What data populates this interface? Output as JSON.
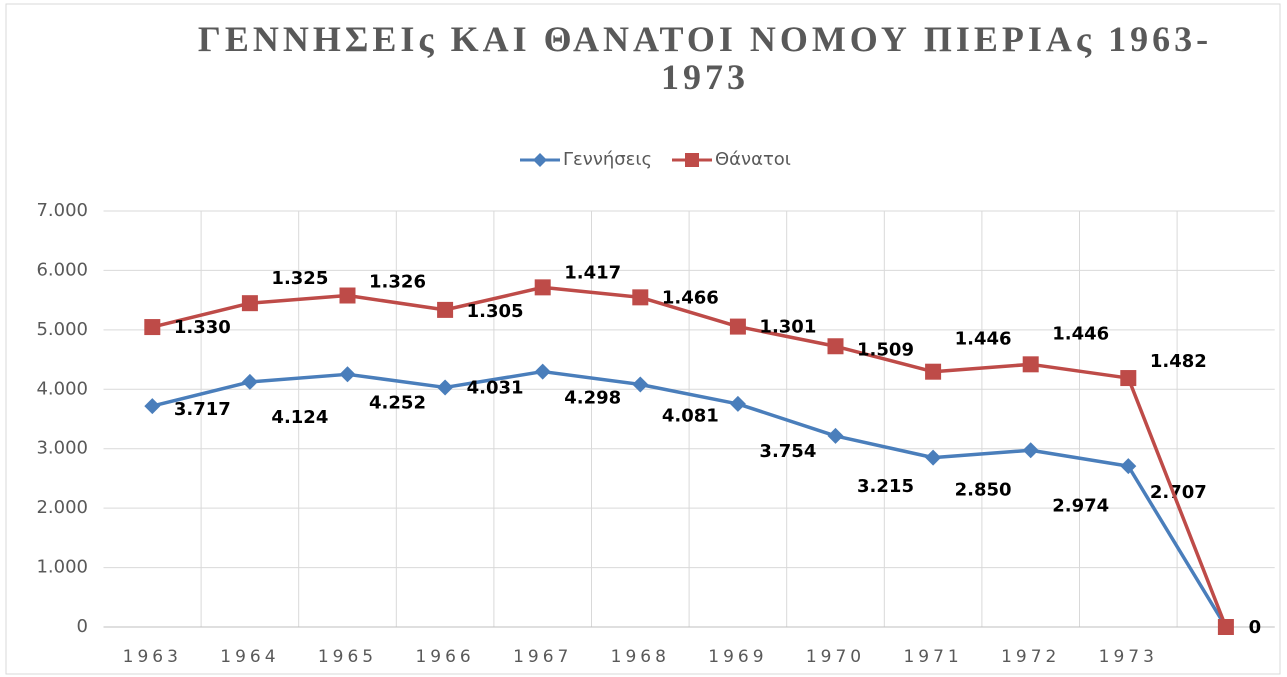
{
  "chart_data": {
    "type": "line",
    "stacked": true,
    "title": "ΓΕΝΝΗΣΕΙς ΚΑΙ ΘΑΝΑΤΟΙ ΝΟΜΟΥ ΠΙΕΡΙΑς 1963-1973",
    "categories": [
      "1963",
      "1964",
      "1965",
      "1966",
      "1967",
      "1968",
      "1969",
      "1970",
      "1971",
      "1972",
      "1973",
      null
    ],
    "series": [
      {
        "name": "Γεννήσεις",
        "color": "#4a7ebb",
        "marker": "diamond",
        "values": [
          3717,
          4124,
          4252,
          4031,
          4298,
          4081,
          3754,
          3215,
          2850,
          2974,
          2707,
          0
        ],
        "value_labels": [
          "3.717",
          "4.124",
          "4.252",
          "4.031",
          "4.298",
          "4.081",
          "3.754",
          "3.215",
          "2.850",
          "2.974",
          "2.707",
          null
        ]
      },
      {
        "name": "Θάνατοι",
        "color": "#be4b48",
        "marker": "square",
        "values": [
          1330,
          1325,
          1326,
          1305,
          1417,
          1466,
          1301,
          1509,
          1446,
          1446,
          1482,
          0
        ],
        "value_labels": [
          "1.330",
          "1.325",
          "1.326",
          "1.305",
          "1.417",
          "1.466",
          "1.301",
          "1.509",
          "1.446",
          "1.446",
          "1.482",
          "0"
        ]
      }
    ],
    "ylim": [
      0,
      7000
    ],
    "yticks": [
      0,
      {
        "value": 1000,
        "label": "1.000"
      },
      {
        "value": 2000,
        "label": "2.000"
      },
      {
        "value": 3000,
        "label": "3.000"
      },
      {
        "value": 4000,
        "label": "4.000"
      },
      {
        "value": 5000,
        "label": "5.000"
      },
      {
        "value": 6000,
        "label": "6.000"
      },
      {
        "value": 7000,
        "label": "7.000"
      }
    ],
    "grid": true,
    "legend": "top"
  }
}
